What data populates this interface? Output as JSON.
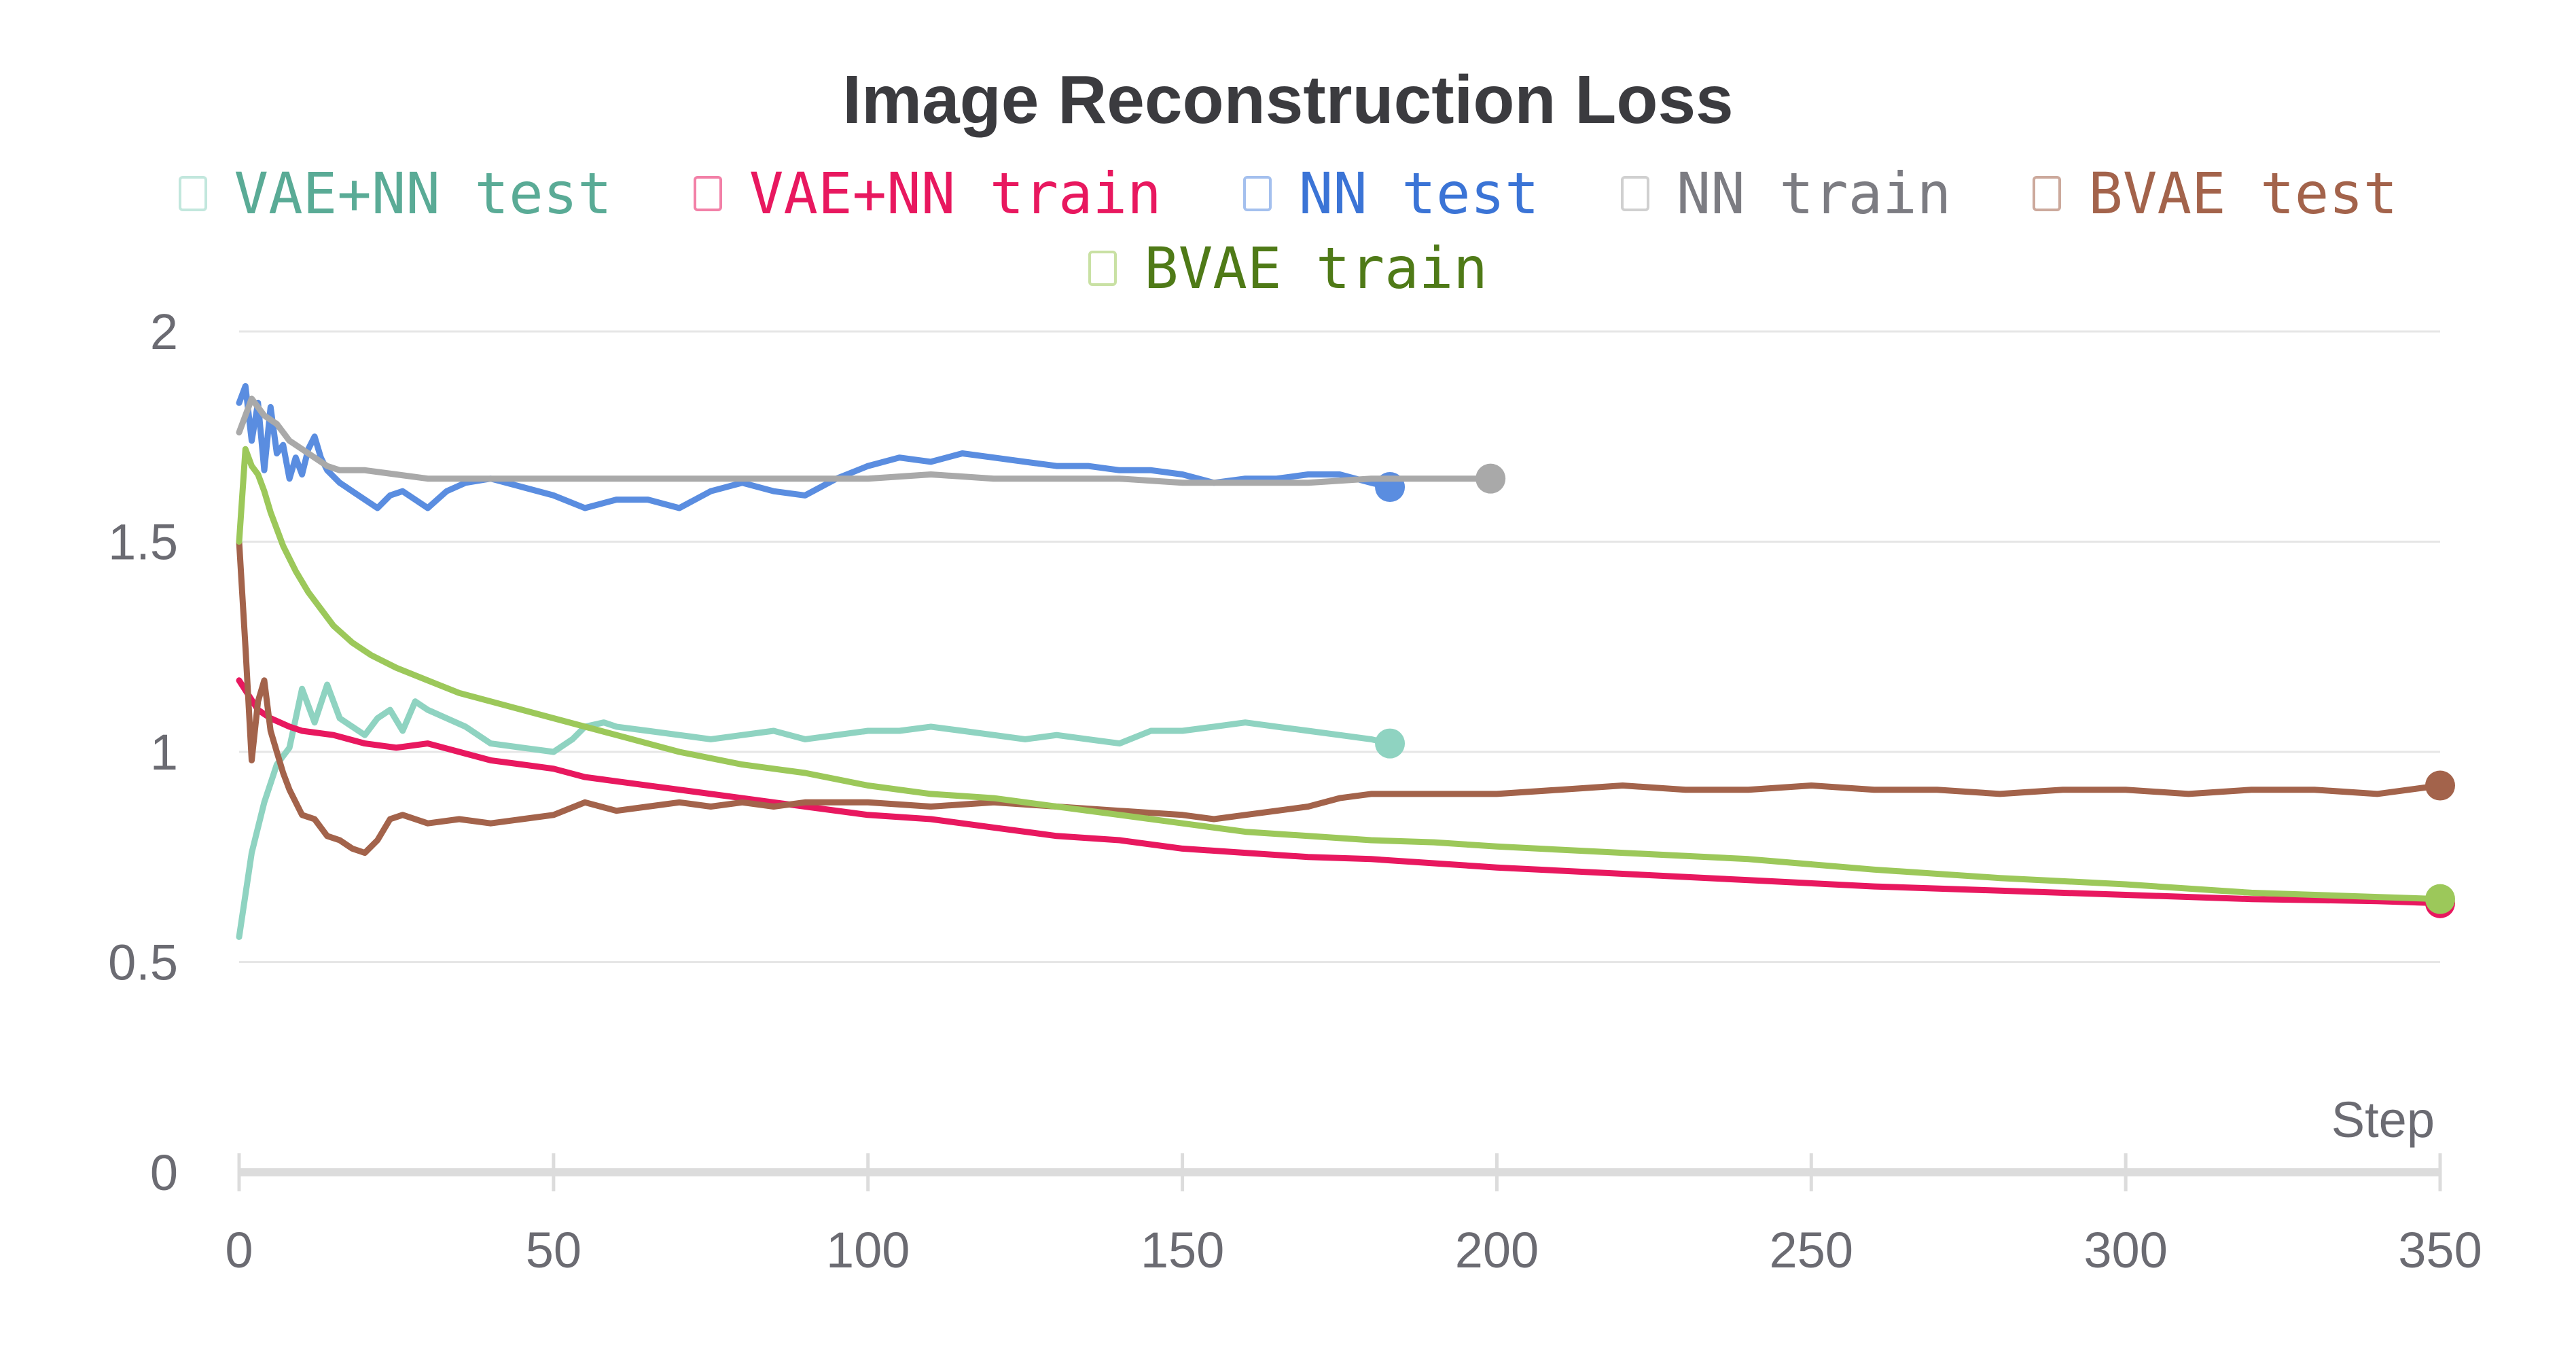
{
  "chart_data": {
    "type": "line",
    "title": "Image Reconstruction Loss",
    "xlabel": "Step",
    "ylabel": "",
    "xlim": [
      0,
      350
    ],
    "ylim": [
      0,
      2
    ],
    "x_ticks": [
      "0",
      "50",
      "100",
      "150",
      "200",
      "250",
      "300",
      "350"
    ],
    "y_ticks": [
      "0",
      "0.5",
      "1",
      "1.5",
      "2"
    ],
    "grid": "horizontal",
    "legend": "top",
    "series": [
      {
        "name": "VAE+NN test",
        "color": "#8fd3c1",
        "text_color": "#5aab96",
        "marker_end": true,
        "x": [
          0,
          2,
          4,
          6,
          8,
          10,
          12,
          14,
          16,
          18,
          20,
          22,
          24,
          26,
          28,
          30,
          33,
          36,
          40,
          45,
          50,
          53,
          55,
          58,
          60,
          65,
          70,
          75,
          80,
          85,
          90,
          95,
          100,
          105,
          110,
          115,
          120,
          125,
          130,
          135,
          140,
          145,
          150,
          155,
          160,
          165,
          170,
          175,
          180,
          183
        ],
        "y": [
          0.56,
          0.76,
          0.88,
          0.97,
          1.01,
          1.15,
          1.07,
          1.16,
          1.08,
          1.06,
          1.04,
          1.08,
          1.1,
          1.05,
          1.12,
          1.1,
          1.08,
          1.06,
          1.02,
          1.01,
          1.0,
          1.03,
          1.06,
          1.07,
          1.06,
          1.05,
          1.04,
          1.03,
          1.04,
          1.05,
          1.03,
          1.04,
          1.05,
          1.05,
          1.06,
          1.05,
          1.04,
          1.03,
          1.04,
          1.03,
          1.02,
          1.05,
          1.05,
          1.06,
          1.07,
          1.06,
          1.05,
          1.04,
          1.03,
          1.02
        ]
      },
      {
        "name": "VAE+NN train",
        "color": "#e8185f",
        "text_color": "#e8185f",
        "marker_end": true,
        "x": [
          0,
          3,
          5,
          8,
          10,
          15,
          20,
          25,
          30,
          35,
          40,
          45,
          50,
          55,
          60,
          70,
          80,
          90,
          100,
          110,
          120,
          130,
          140,
          150,
          160,
          170,
          180,
          190,
          200,
          220,
          240,
          260,
          280,
          300,
          320,
          340,
          350
        ],
        "y": [
          1.17,
          1.1,
          1.08,
          1.06,
          1.05,
          1.04,
          1.02,
          1.01,
          1.02,
          1.0,
          0.98,
          0.97,
          0.96,
          0.94,
          0.93,
          0.91,
          0.89,
          0.87,
          0.85,
          0.84,
          0.82,
          0.8,
          0.79,
          0.77,
          0.76,
          0.75,
          0.745,
          0.735,
          0.725,
          0.71,
          0.695,
          0.68,
          0.67,
          0.66,
          0.65,
          0.645,
          0.64
        ]
      },
      {
        "name": "NN test",
        "color": "#5a8de0",
        "text_color": "#3b74d6",
        "marker_end": true,
        "x": [
          0,
          1,
          2,
          3,
          4,
          5,
          6,
          7,
          8,
          9,
          10,
          11,
          12,
          13,
          14,
          16,
          18,
          20,
          22,
          24,
          26,
          28,
          30,
          33,
          36,
          40,
          45,
          50,
          55,
          60,
          65,
          70,
          75,
          80,
          85,
          90,
          95,
          100,
          105,
          110,
          115,
          120,
          125,
          130,
          135,
          140,
          145,
          150,
          155,
          160,
          165,
          170,
          175,
          180,
          183
        ],
        "y": [
          1.83,
          1.87,
          1.74,
          1.83,
          1.67,
          1.82,
          1.71,
          1.73,
          1.65,
          1.7,
          1.66,
          1.72,
          1.75,
          1.7,
          1.67,
          1.64,
          1.62,
          1.6,
          1.58,
          1.61,
          1.62,
          1.6,
          1.58,
          1.62,
          1.64,
          1.65,
          1.63,
          1.61,
          1.58,
          1.6,
          1.6,
          1.58,
          1.62,
          1.64,
          1.62,
          1.61,
          1.65,
          1.68,
          1.7,
          1.69,
          1.71,
          1.7,
          1.69,
          1.68,
          1.68,
          1.67,
          1.67,
          1.66,
          1.64,
          1.65,
          1.65,
          1.66,
          1.66,
          1.64,
          1.63
        ]
      },
      {
        "name": "NN train",
        "color": "#a9a9a9",
        "text_color": "#7c7c82",
        "marker_end": true,
        "x": [
          0,
          2,
          4,
          6,
          8,
          10,
          12,
          14,
          16,
          20,
          25,
          30,
          40,
          50,
          60,
          70,
          80,
          90,
          100,
          110,
          120,
          130,
          140,
          150,
          160,
          170,
          180,
          190,
          199
        ],
        "y": [
          1.76,
          1.84,
          1.8,
          1.78,
          1.74,
          1.72,
          1.7,
          1.68,
          1.67,
          1.67,
          1.66,
          1.65,
          1.65,
          1.65,
          1.65,
          1.65,
          1.65,
          1.65,
          1.65,
          1.66,
          1.65,
          1.65,
          1.65,
          1.64,
          1.64,
          1.64,
          1.65,
          1.65,
          1.65
        ]
      },
      {
        "name": "BVAE test",
        "color": "#a3634b",
        "text_color": "#a3634b",
        "marker_end": true,
        "x": [
          0,
          1,
          2,
          3,
          4,
          5,
          6,
          7,
          8,
          10,
          12,
          14,
          16,
          18,
          20,
          22,
          24,
          26,
          28,
          30,
          35,
          40,
          45,
          50,
          55,
          60,
          65,
          70,
          75,
          80,
          85,
          90,
          95,
          100,
          110,
          120,
          130,
          140,
          150,
          155,
          160,
          165,
          170,
          175,
          180,
          190,
          200,
          210,
          220,
          230,
          240,
          250,
          260,
          270,
          280,
          290,
          300,
          310,
          320,
          330,
          340,
          350
        ],
        "y": [
          1.5,
          1.25,
          0.98,
          1.12,
          1.17,
          1.05,
          1.0,
          0.95,
          0.91,
          0.85,
          0.84,
          0.8,
          0.79,
          0.77,
          0.76,
          0.79,
          0.84,
          0.85,
          0.84,
          0.83,
          0.84,
          0.83,
          0.84,
          0.85,
          0.88,
          0.86,
          0.87,
          0.88,
          0.87,
          0.88,
          0.87,
          0.88,
          0.88,
          0.88,
          0.87,
          0.88,
          0.87,
          0.86,
          0.85,
          0.84,
          0.85,
          0.86,
          0.87,
          0.89,
          0.9,
          0.9,
          0.9,
          0.91,
          0.92,
          0.91,
          0.91,
          0.92,
          0.91,
          0.91,
          0.9,
          0.91,
          0.91,
          0.9,
          0.91,
          0.91,
          0.9,
          0.92
        ]
      },
      {
        "name": "BVAE train",
        "color": "#9cc85a",
        "text_color": "#4f7a17",
        "marker_end": true,
        "x": [
          0,
          1,
          2,
          3,
          4,
          5,
          7,
          9,
          11,
          13,
          15,
          18,
          21,
          25,
          30,
          35,
          40,
          50,
          60,
          70,
          80,
          90,
          100,
          110,
          120,
          130,
          140,
          150,
          160,
          170,
          180,
          190,
          200,
          220,
          240,
          260,
          280,
          300,
          320,
          340,
          350
        ],
        "y": [
          1.5,
          1.72,
          1.68,
          1.66,
          1.62,
          1.57,
          1.49,
          1.43,
          1.38,
          1.34,
          1.3,
          1.26,
          1.23,
          1.2,
          1.17,
          1.14,
          1.12,
          1.08,
          1.04,
          1.0,
          0.97,
          0.95,
          0.92,
          0.9,
          0.89,
          0.87,
          0.85,
          0.83,
          0.81,
          0.8,
          0.79,
          0.785,
          0.775,
          0.76,
          0.745,
          0.72,
          0.7,
          0.685,
          0.665,
          0.655,
          0.65
        ]
      }
    ]
  }
}
